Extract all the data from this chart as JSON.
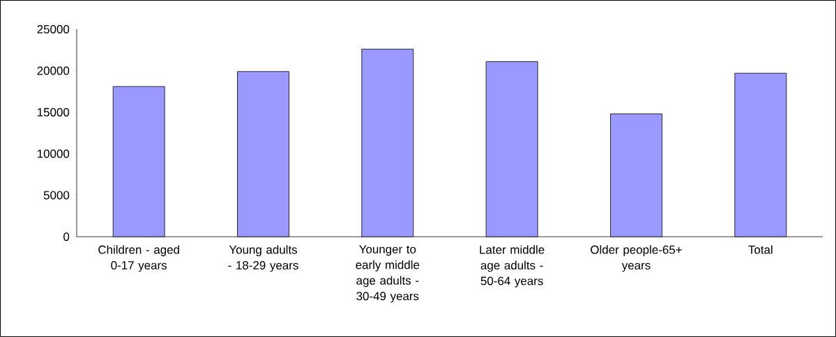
{
  "chart_data": {
    "type": "bar",
    "categories": [
      "Children - aged 0-17 years",
      "Young adults - 18-29 years",
      "Younger to early middle age adults - 30-49 years",
      "Later middle age adults -  50-64 years",
      "Older people-65+ years",
      "Total"
    ],
    "values": [
      18100,
      19900,
      22600,
      21100,
      14800,
      19700
    ],
    "color": "#9999ff",
    "ylim": [
      0,
      25000
    ],
    "yticks": [
      0,
      5000,
      10000,
      15000,
      20000,
      25000
    ]
  }
}
